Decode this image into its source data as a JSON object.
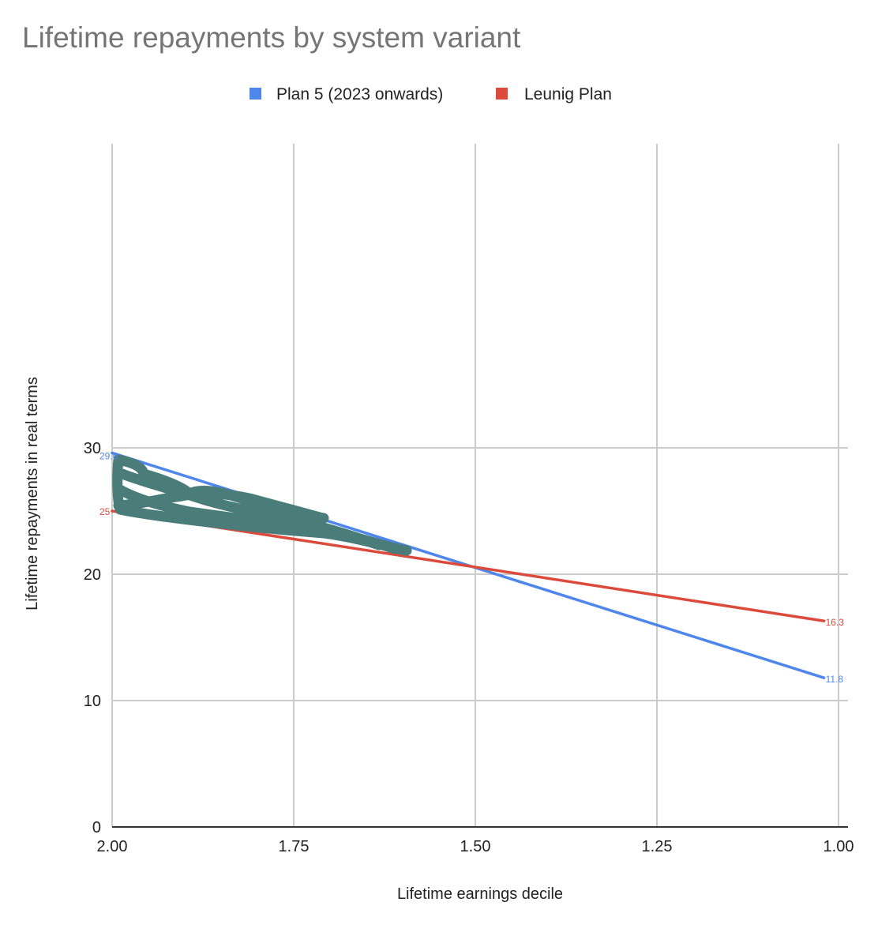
{
  "chart_data": {
    "type": "line",
    "title": "Lifetime repayments by system variant",
    "xlabel": "Lifetime earnings decile",
    "ylabel": "Lifetime repayments in real terms",
    "x_reversed": true,
    "xlim": [
      2.0,
      1.0
    ],
    "ylim": [
      0,
      30
    ],
    "x_ticks": [
      "2.00",
      "1.75",
      "1.50",
      "1.25",
      "1.00"
    ],
    "x_tick_values": [
      2.0,
      1.75,
      1.5,
      1.25,
      1.0
    ],
    "y_ticks": [
      "0",
      "10",
      "20",
      "30"
    ],
    "y_tick_values": [
      0,
      10,
      20,
      30
    ],
    "grid": true,
    "legend_position": "top-center",
    "series": [
      {
        "name": "Plan 5 (2023 onwards)",
        "color": "#4f86ec",
        "x": [
          2.0,
          1.02
        ],
        "values": [
          29.6,
          11.8
        ],
        "labels": [
          "29.6",
          "11.8"
        ]
      },
      {
        "name": "Leunig Plan",
        "color": "#db4a3b",
        "x": [
          2.0,
          1.02
        ],
        "values": [
          25.0,
          16.3
        ],
        "labels": [
          "25",
          "16.3"
        ]
      }
    ],
    "annotations": [
      {
        "type": "freehand-scribble",
        "color": "#4a7c7a",
        "description": "Hand-drawn scribble covering the lines between x≈2.0 and x≈1.6"
      }
    ]
  }
}
